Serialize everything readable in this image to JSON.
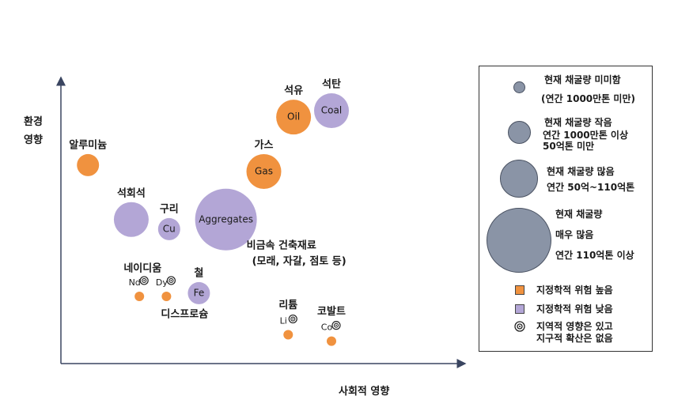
{
  "chart_data": {
    "type": "bubble",
    "title": "",
    "ylabel_lines": [
      "환경",
      "영향"
    ],
    "xlabel": "사회적 영향",
    "colors": {
      "high": "#f0923f",
      "low": "#b3a6d6",
      "size_legend": "#8a94a6"
    },
    "points": [
      {
        "label": "알루미늄",
        "x": 1.0,
        "y": 6.2,
        "size": 2,
        "risk": "high"
      },
      {
        "label": "석회석",
        "x": 2.6,
        "y": 4.5,
        "size": 3,
        "risk": "low"
      },
      {
        "label": "구리",
        "inner": "Cu",
        "x": 4.0,
        "y": 4.2,
        "size": 2,
        "risk": "low"
      },
      {
        "label": "",
        "inner": "Aggregates",
        "x": 6.1,
        "y": 4.5,
        "size": 4,
        "risk": "low"
      },
      {
        "label": "가스",
        "inner": "Gas",
        "x": 7.5,
        "y": 6.0,
        "size": 3,
        "risk": "high"
      },
      {
        "label": "석유",
        "inner": "Oil",
        "x": 8.6,
        "y": 7.7,
        "size": 3,
        "risk": "high"
      },
      {
        "label": "석탄",
        "inner": "Coal",
        "x": 10.0,
        "y": 7.9,
        "size": 3,
        "risk": "low"
      },
      {
        "label": "",
        "inner": "Nd",
        "x": 2.9,
        "y": 2.1,
        "size": 1,
        "risk": "high",
        "local_only": true
      },
      {
        "label": "",
        "inner": "Dy",
        "x": 3.9,
        "y": 2.1,
        "size": 1,
        "risk": "high",
        "local_only": true
      },
      {
        "label": "철",
        "inner": "Fe",
        "x": 5.1,
        "y": 2.2,
        "size": 2,
        "risk": "low"
      },
      {
        "label": "리튬",
        "inner": "Li",
        "x": 8.4,
        "y": 0.9,
        "size": 1,
        "risk": "high",
        "local_only": true
      },
      {
        "label": "코발트",
        "inner": "Co",
        "x": 10.0,
        "y": 0.7,
        "size": 1,
        "risk": "high",
        "local_only": true
      }
    ],
    "group_labels": {
      "aggregates": [
        "비금속 건축재료",
        "(모래, 자갈, 점토 등)"
      ],
      "rare_earth_top": "네이디움",
      "rare_earth_bottom": "디스프로슘"
    }
  },
  "legend": {
    "sizes": [
      {
        "lines": [
          "현재 채굴량 미미함",
          "(연간 1000만톤 미만)"
        ]
      },
      {
        "lines": [
          "현재 채굴량 작음",
          "연간 1000만톤 이상",
          "50억톤 미만"
        ]
      },
      {
        "lines": [
          "현재 채굴량 많음",
          "연간 50억~110억톤"
        ]
      },
      {
        "lines": [
          "현재 채굴량",
          "매우 많음",
          "연간 110억톤 이상"
        ]
      }
    ],
    "high_risk": "지정학적 위험 높음",
    "low_risk": "지정학적 위험 낮음",
    "local_only": [
      "지역적 영향은 있고",
      "지구적 확산은 없음"
    ]
  }
}
